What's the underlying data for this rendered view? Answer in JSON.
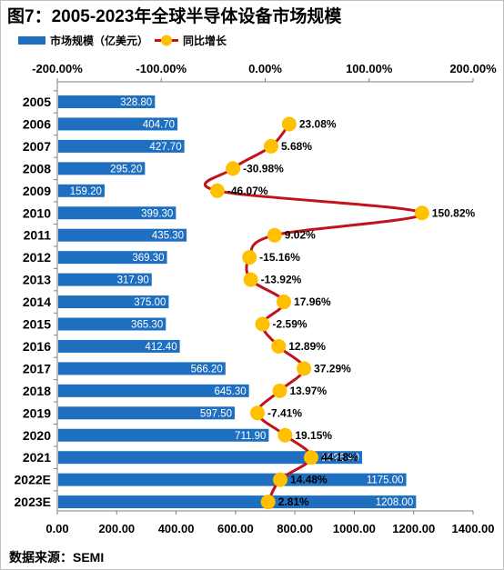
{
  "title": "图7：2005-2023年全球半导体设备市场规模",
  "source": "数据来源：SEMI",
  "colors": {
    "bar": "#1f6fc0",
    "line": "#c0131b",
    "marker": "#ffc000"
  },
  "chart_data": {
    "type": "bar",
    "orientation": "horizontal",
    "categories": [
      "2005",
      "2006",
      "2007",
      "2008",
      "2009",
      "2010",
      "2011",
      "2012",
      "2013",
      "2014",
      "2015",
      "2016",
      "2017",
      "2018",
      "2019",
      "2020",
      "2021",
      "2022E",
      "2023E"
    ],
    "series": [
      {
        "name": "市场规模（亿美元）",
        "type": "bar",
        "values": [
          328.8,
          404.7,
          427.7,
          295.2,
          159.2,
          399.3,
          435.3,
          369.3,
          317.9,
          375.0,
          365.3,
          412.4,
          566.2,
          645.3,
          597.5,
          711.9,
          1026.4,
          1175.0,
          1208.0
        ],
        "labels": [
          "328.80",
          "404.70",
          "427.70",
          "295.20",
          "159.20",
          "399.30",
          "435.30",
          "369.30",
          "317.90",
          "375.00",
          "365.30",
          "412.40",
          "566.20",
          "645.30",
          "597.50",
          "711.90",
          "1026.40",
          "1175.00",
          "1208.00"
        ]
      },
      {
        "name": "同比增长",
        "type": "line",
        "values": [
          null,
          23.08,
          5.68,
          -30.98,
          -46.07,
          150.82,
          9.02,
          -15.16,
          -13.92,
          17.96,
          -2.59,
          12.89,
          37.29,
          13.97,
          -7.41,
          19.15,
          44.18,
          14.48,
          2.81
        ],
        "labels": [
          "",
          "23.08%",
          "5.68%",
          "-30.98%",
          "-46.07%",
          "150.82%",
          "9.02%",
          "-15.16%",
          "-13.92%",
          "17.96%",
          "-2.59%",
          "12.89%",
          "37.29%",
          "13.97%",
          "-7.41%",
          "19.15%",
          "44.18%",
          "14.48%",
          "2.81%"
        ]
      }
    ],
    "bottom_axis": {
      "range": [
        0,
        1400
      ],
      "ticks": [
        0,
        200,
        400,
        600,
        800,
        1000,
        1200,
        1400
      ],
      "tick_labels": [
        "0.00",
        "200.00",
        "400.00",
        "600.00",
        "800.00",
        "1000.00",
        "1200.00",
        "1400.00"
      ]
    },
    "top_axis": {
      "range": [
        -200,
        200
      ],
      "ticks": [
        -200,
        -100,
        0,
        100,
        200
      ],
      "tick_labels": [
        "-200.00%",
        "-100.00%",
        "0.00%",
        "100.00%",
        "200.00%"
      ]
    },
    "legend_position": "top-left",
    "grid": false
  }
}
